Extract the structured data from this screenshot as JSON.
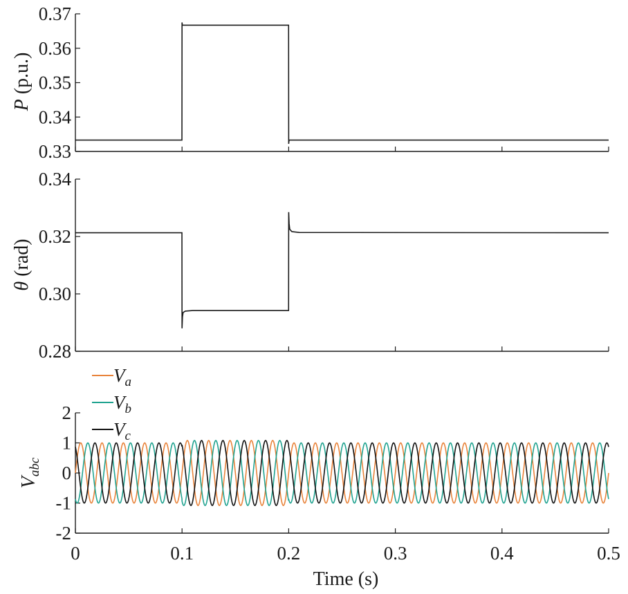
{
  "chart_data": [
    {
      "id": "power",
      "type": "line",
      "ylabel_var": "P",
      "ylabel_unit": " (p.u.)",
      "ylim": [
        0.33,
        0.37
      ],
      "yticks": [
        "0.33",
        "0.34",
        "0.35",
        "0.36",
        "0.37"
      ],
      "xlim": [
        0,
        0.5
      ],
      "grid": false,
      "series": [
        {
          "color": "#1a1a1a",
          "x": [
            0,
            0.0999,
            0.1,
            0.1003,
            0.1006,
            0.1999,
            0.2,
            0.2003,
            0.2008,
            0.5
          ],
          "y": [
            0.3333,
            0.3333,
            0.3675,
            0.3667,
            0.3667,
            0.3667,
            0.3322,
            0.3332,
            0.3333,
            0.3333
          ]
        }
      ]
    },
    {
      "id": "angle",
      "type": "line",
      "ylabel_var": "θ",
      "ylabel_unit": " (rad)",
      "ylim": [
        0.28,
        0.34
      ],
      "yticks": [
        "0.28",
        "0.30",
        "0.32",
        "0.34"
      ],
      "xlim": [
        0,
        0.5
      ],
      "grid": false,
      "series": [
        {
          "color": "#1a1a1a",
          "x": [
            0,
            0.0999,
            0.1,
            0.1004,
            0.101,
            0.103,
            0.11,
            0.1999,
            0.2,
            0.2004,
            0.201,
            0.203,
            0.21,
            0.5
          ],
          "y": [
            0.3213,
            0.3213,
            0.288,
            0.292,
            0.2935,
            0.294,
            0.2942,
            0.2942,
            0.3285,
            0.3245,
            0.3225,
            0.3217,
            0.3214,
            0.3213
          ]
        }
      ]
    },
    {
      "id": "voltage",
      "type": "line",
      "ylabel_main": "V",
      "ylabel_sub": "abc",
      "ylim": [
        -2,
        2
      ],
      "yticks": [
        "-2",
        "-1",
        "0",
        "1",
        "2"
      ],
      "xlim": [
        0,
        0.5
      ],
      "xticks": [
        "0",
        "0.1",
        "0.2",
        "0.3",
        "0.4",
        "0.5"
      ],
      "xlabel": "Time (s)",
      "grid": false,
      "frequency_hz": 50,
      "amplitude_normal": 1.0,
      "amplitude_disturbed": 1.08,
      "disturbance_interval": [
        0.1,
        0.2
      ],
      "series": [
        {
          "name_main": "V",
          "name_sub": "a",
          "color": "#e8833a",
          "phase_deg": 0
        },
        {
          "name_main": "V",
          "name_sub": "b",
          "color": "#1fa28f",
          "phase_deg": -120
        },
        {
          "name_main": "V",
          "name_sub": "c",
          "color": "#111111",
          "phase_deg": 120
        }
      ]
    }
  ]
}
